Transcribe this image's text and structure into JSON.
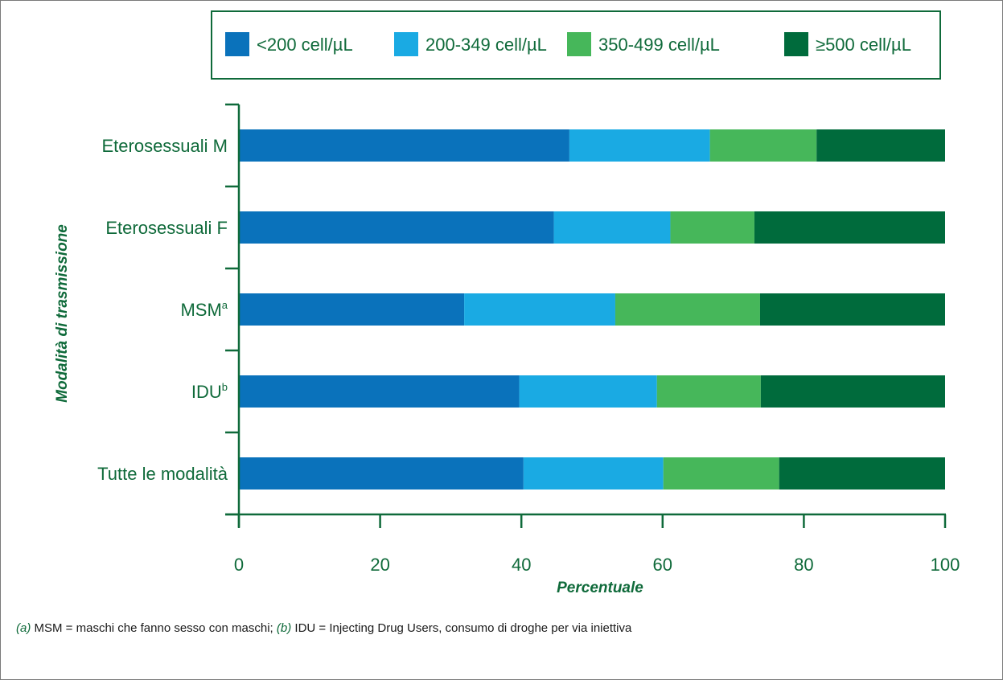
{
  "chart_data": {
    "type": "bar",
    "orientation": "horizontal",
    "stacked": true,
    "categories": [
      "Eterosessuali M",
      "Eterosessuali F",
      "MSM",
      "IDU",
      "Tutte le modalità"
    ],
    "category_superscripts": [
      "",
      "",
      "a",
      "b",
      ""
    ],
    "series": [
      {
        "name": "<200 cell/µL",
        "color": "#0a72bb",
        "values": [
          46.8,
          44.6,
          31.9,
          39.7,
          40.3
        ]
      },
      {
        "name": "200-349 cell/µL",
        "color": "#1aaae3",
        "values": [
          19.9,
          16.5,
          21.4,
          19.5,
          19.8
        ]
      },
      {
        "name": "350-499 cell/µL",
        "color": "#46b75a",
        "values": [
          15.1,
          11.9,
          20.5,
          14.7,
          16.4
        ]
      },
      {
        "name": "≥500 cell/µL",
        "color": "#006b3c",
        "values": [
          18.2,
          27.0,
          26.2,
          26.1,
          23.5
        ]
      }
    ],
    "xlabel": "Percentuale",
    "ylabel": "Modalità di trasmissione",
    "xlim": [
      0,
      100
    ],
    "xticks": [
      0,
      20,
      40,
      60,
      80,
      100
    ],
    "legend_position": "top",
    "grid": false,
    "axis_color": "#0f6a3a"
  },
  "footnote": {
    "a_key": "(a)",
    "a_text": " MSM = maschi che fanno sesso con maschi; ",
    "b_key": "(b)",
    "b_text": " IDU = Injecting Drug Users, consumo di droghe per via iniettiva"
  }
}
